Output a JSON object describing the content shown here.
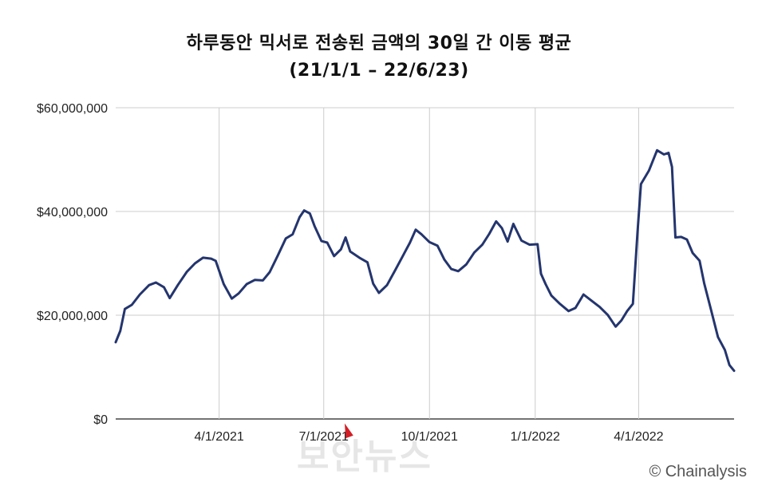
{
  "title_line1": "하루동안 믹서로 전송된 금액의 30일 간 이동 평균",
  "title_line2": "(21/1/1 – 22/6/23)",
  "credit": "© Chainalysis",
  "watermark": "보안뉴스",
  "colors": {
    "line": "#24356e",
    "grid": "#cccccc",
    "axis": "#222222"
  },
  "chart_data": {
    "type": "line",
    "title": "하루동안 믹서로 전송된 금액의 30일 간 이동 평균 (21/1/1 – 22/6/23)",
    "y_ticks": [
      {
        "value": 0,
        "label": "$0"
      },
      {
        "value": 20000000,
        "label": "$20,000,000"
      },
      {
        "value": 40000000,
        "label": "$40,000,000"
      },
      {
        "value": 60000000,
        "label": "$60,000,000"
      }
    ],
    "x_ticks": [
      {
        "date": "2021-04-01",
        "label": "4/1/2021"
      },
      {
        "date": "2021-07-01",
        "label": "7/1/2021"
      },
      {
        "date": "2021-10-01",
        "label": "10/1/2021"
      },
      {
        "date": "2022-01-01",
        "label": "1/1/2022"
      },
      {
        "date": "2022-04-01",
        "label": "4/1/2022"
      }
    ],
    "xlim": [
      "2021-01-01",
      "2022-06-23"
    ],
    "ylim": [
      0,
      60000000
    ],
    "grid": true,
    "series": [
      {
        "points": [
          [
            "2021-01-01",
            14800000
          ],
          [
            "2021-01-05",
            17000000
          ],
          [
            "2021-01-09",
            21200000
          ],
          [
            "2021-01-15",
            22000000
          ],
          [
            "2021-01-22",
            24000000
          ],
          [
            "2021-01-30",
            25800000
          ],
          [
            "2021-02-05",
            26300000
          ],
          [
            "2021-02-12",
            25400000
          ],
          [
            "2021-02-17",
            23300000
          ],
          [
            "2021-02-24",
            25800000
          ],
          [
            "2021-03-04",
            28400000
          ],
          [
            "2021-03-11",
            30000000
          ],
          [
            "2021-03-18",
            31100000
          ],
          [
            "2021-03-25",
            30900000
          ],
          [
            "2021-03-29",
            30500000
          ],
          [
            "2021-04-05",
            26000000
          ],
          [
            "2021-04-12",
            23200000
          ],
          [
            "2021-04-18",
            24200000
          ],
          [
            "2021-04-25",
            26000000
          ],
          [
            "2021-05-02",
            26800000
          ],
          [
            "2021-05-09",
            26700000
          ],
          [
            "2021-05-15",
            28300000
          ],
          [
            "2021-05-22",
            31500000
          ],
          [
            "2021-05-29",
            34800000
          ],
          [
            "2021-06-04",
            35600000
          ],
          [
            "2021-06-10",
            38900000
          ],
          [
            "2021-06-14",
            40200000
          ],
          [
            "2021-06-19",
            39600000
          ],
          [
            "2021-06-23",
            37200000
          ],
          [
            "2021-06-29",
            34300000
          ],
          [
            "2021-07-04",
            34000000
          ],
          [
            "2021-07-10",
            31400000
          ],
          [
            "2021-07-16",
            32700000
          ],
          [
            "2021-07-20",
            35000000
          ],
          [
            "2021-07-24",
            32300000
          ],
          [
            "2021-08-01",
            31100000
          ],
          [
            "2021-08-08",
            30200000
          ],
          [
            "2021-08-13",
            26100000
          ],
          [
            "2021-08-18",
            24300000
          ],
          [
            "2021-08-25",
            25800000
          ],
          [
            "2021-09-01",
            28600000
          ],
          [
            "2021-09-08",
            31500000
          ],
          [
            "2021-09-14",
            34000000
          ],
          [
            "2021-09-19",
            36500000
          ],
          [
            "2021-09-24",
            35600000
          ],
          [
            "2021-10-01",
            34100000
          ],
          [
            "2021-10-08",
            33400000
          ],
          [
            "2021-10-14",
            30700000
          ],
          [
            "2021-10-20",
            28900000
          ],
          [
            "2021-10-26",
            28500000
          ],
          [
            "2021-11-02",
            29800000
          ],
          [
            "2021-11-09",
            32100000
          ],
          [
            "2021-11-16",
            33600000
          ],
          [
            "2021-11-22",
            35700000
          ],
          [
            "2021-11-28",
            38100000
          ],
          [
            "2021-12-03",
            36800000
          ],
          [
            "2021-12-08",
            34200000
          ],
          [
            "2021-12-13",
            37600000
          ],
          [
            "2021-12-20",
            34400000
          ],
          [
            "2021-12-27",
            33600000
          ],
          [
            "2022-01-03",
            33700000
          ],
          [
            "2022-01-06",
            28000000
          ],
          [
            "2022-01-10",
            26000000
          ],
          [
            "2022-01-15",
            23800000
          ],
          [
            "2022-01-22",
            22300000
          ],
          [
            "2022-01-30",
            20800000
          ],
          [
            "2022-02-05",
            21400000
          ],
          [
            "2022-02-12",
            24000000
          ],
          [
            "2022-02-19",
            22800000
          ],
          [
            "2022-02-26",
            21600000
          ],
          [
            "2022-03-05",
            20100000
          ],
          [
            "2022-03-12",
            17800000
          ],
          [
            "2022-03-17",
            19000000
          ],
          [
            "2022-03-22",
            20800000
          ],
          [
            "2022-03-27",
            22200000
          ],
          [
            "2022-03-31",
            36000000
          ],
          [
            "2022-04-03",
            45300000
          ],
          [
            "2022-04-10",
            47900000
          ],
          [
            "2022-04-17",
            51800000
          ],
          [
            "2022-04-23",
            51000000
          ],
          [
            "2022-04-27",
            51300000
          ],
          [
            "2022-04-30",
            48600000
          ],
          [
            "2022-05-03",
            35000000
          ],
          [
            "2022-05-08",
            35100000
          ],
          [
            "2022-05-13",
            34600000
          ],
          [
            "2022-05-18",
            32000000
          ],
          [
            "2022-05-24",
            30500000
          ],
          [
            "2022-05-28",
            26200000
          ],
          [
            "2022-06-03",
            21000000
          ],
          [
            "2022-06-09",
            15800000
          ],
          [
            "2022-06-15",
            13300000
          ],
          [
            "2022-06-19",
            10400000
          ],
          [
            "2022-06-23",
            9300000
          ]
        ]
      }
    ]
  }
}
